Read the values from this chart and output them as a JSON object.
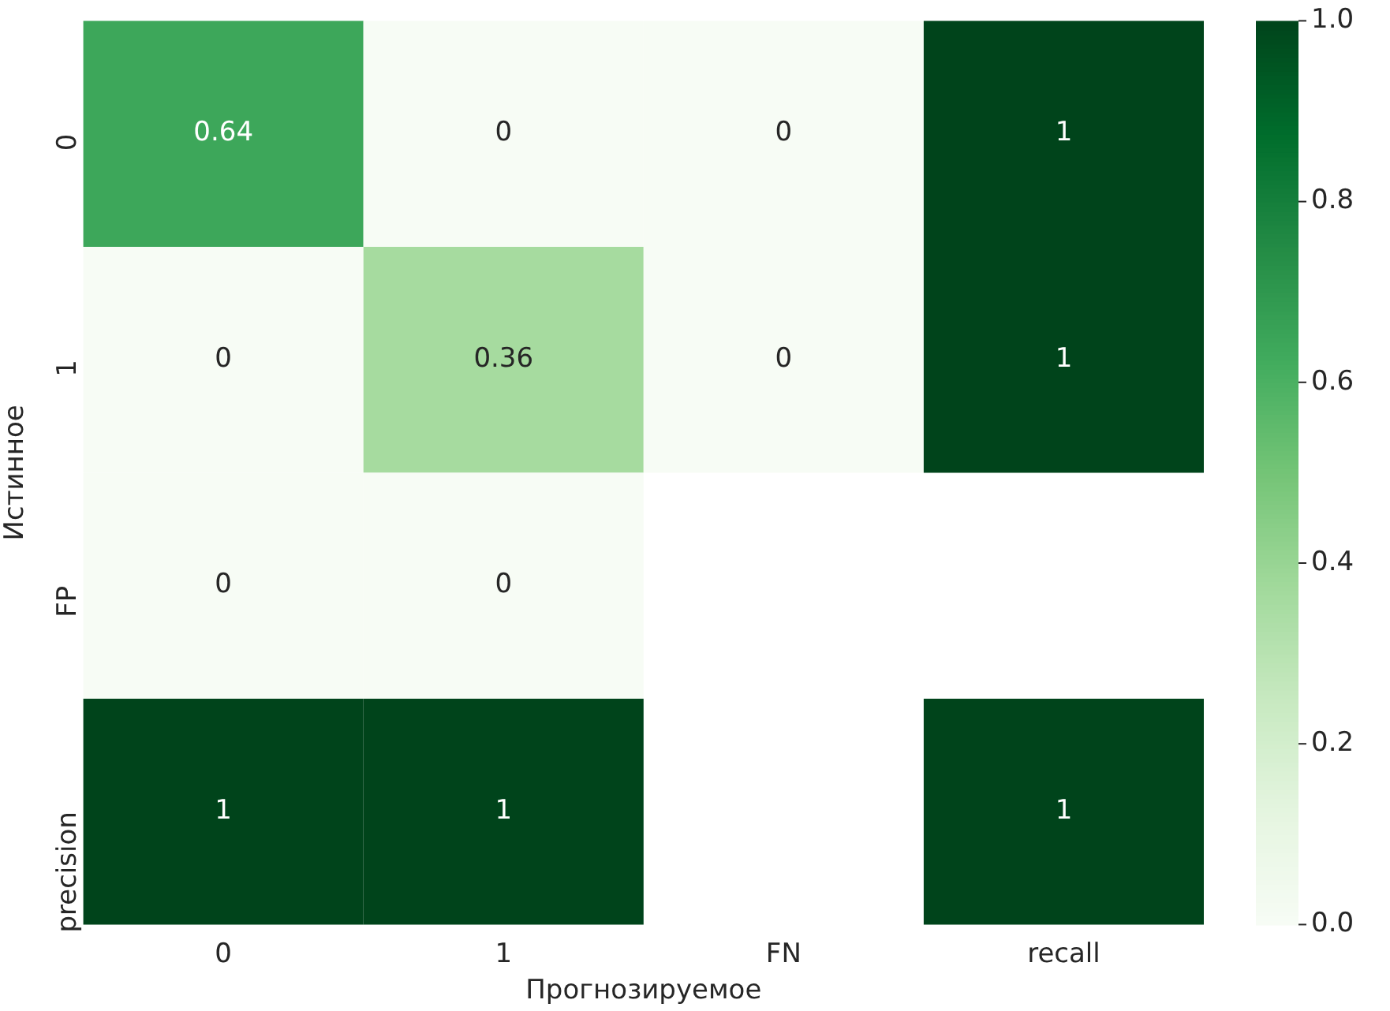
{
  "chart_data": {
    "type": "heatmap",
    "xlabel": "Прогнозируемое",
    "ylabel": "Истинное",
    "categories": [
      "0",
      "1",
      "FN",
      "recall"
    ],
    "y_categories": [
      "0",
      "1",
      "FP",
      "precision"
    ],
    "cells": [
      [
        0.64,
        0,
        0,
        1
      ],
      [
        0,
        0.36,
        0,
        1
      ],
      [
        0,
        0,
        null,
        null
      ],
      [
        1,
        1,
        null,
        1
      ]
    ],
    "data_labels": true,
    "clim": [
      0,
      1
    ],
    "cticks": [
      {
        "value": 0,
        "label": "0.0"
      },
      {
        "value": 0.2,
        "label": "0.2"
      },
      {
        "value": 0.4,
        "label": "0.4"
      },
      {
        "value": 0.6,
        "label": "0.6"
      },
      {
        "value": 0.8,
        "label": "0.8"
      },
      {
        "value": 1,
        "label": "1.0"
      }
    ]
  }
}
